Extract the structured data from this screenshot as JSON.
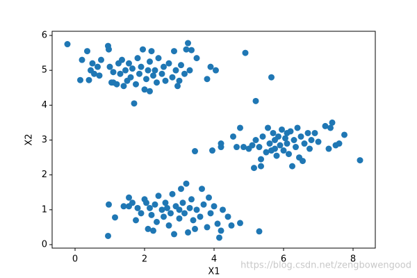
{
  "chart_data": {
    "type": "scatter",
    "xlabel": "X1",
    "ylabel": "X2",
    "color": "#1f77b4",
    "watermark": "https://blog.csdn.net/zengbowengood",
    "xlim": [
      -0.66,
      8.64
    ],
    "ylim": [
      -0.1,
      6.12
    ],
    "xticks": [
      0,
      2,
      4,
      6,
      8
    ],
    "yticks": [
      0,
      1,
      2,
      3,
      4,
      5,
      6
    ],
    "x": [
      -0.22,
      0.15,
      0.2,
      0.35,
      0.4,
      0.45,
      0.5,
      0.55,
      0.65,
      0.7,
      0.75,
      0.95,
      0.97,
      1.0,
      1.05,
      1.1,
      1.2,
      1.25,
      1.3,
      1.35,
      1.4,
      1.45,
      1.5,
      1.55,
      1.6,
      1.65,
      1.7,
      1.75,
      1.8,
      1.85,
      1.9,
      1.95,
      2.0,
      2.05,
      2.1,
      2.15,
      2.2,
      2.25,
      2.3,
      2.35,
      2.4,
      2.5,
      2.55,
      2.6,
      2.7,
      2.8,
      2.85,
      2.9,
      3.0,
      3.05,
      3.15,
      3.2,
      3.25,
      3.3,
      3.35,
      3.5,
      3.8,
      3.9,
      4.05,
      2.95,
      2.15,
      1.1,
      3.45,
      3.95,
      4.2,
      4.2,
      4.55,
      4.65,
      4.75,
      4.85,
      5.0,
      5.1,
      5.15,
      5.2,
      5.3,
      5.35,
      5.35,
      5.4,
      5.5,
      5.55,
      5.6,
      5.65,
      5.7,
      5.75,
      5.8,
      5.85,
      5.9,
      5.95,
      6.0,
      6.05,
      6.1,
      6.15,
      6.2,
      6.25,
      6.3,
      6.35,
      6.4,
      6.45,
      6.5,
      6.55,
      6.6,
      6.7,
      6.75,
      6.8,
      6.9,
      7.0,
      7.2,
      7.3,
      7.35,
      7.4,
      7.5,
      7.6,
      7.75,
      8.2,
      5.75,
      6.1,
      4.9,
      5.65,
      5.2,
      5.3,
      0.97,
      0.95,
      1.15,
      1.4,
      1.55,
      1.55,
      1.65,
      1.75,
      1.8,
      1.9,
      2.0,
      2.05,
      2.1,
      2.15,
      2.2,
      2.25,
      2.3,
      2.35,
      2.4,
      2.5,
      2.55,
      2.6,
      2.7,
      2.75,
      2.8,
      2.85,
      2.9,
      3.0,
      3.05,
      3.1,
      3.15,
      3.2,
      3.25,
      3.3,
      3.35,
      3.4,
      3.45,
      3.5,
      3.6,
      3.65,
      3.7,
      3.8,
      3.85,
      3.9,
      4.0,
      4.1,
      4.15,
      4.2,
      4.25,
      4.4,
      4.5,
      4.75,
      3.0,
      2.65
    ],
    "values": [
      5.75,
      4.72,
      5.3,
      5.55,
      4.72,
      5.0,
      5.2,
      4.9,
      5.1,
      4.85,
      5.3,
      5.7,
      5.6,
      5.1,
      4.65,
      4.95,
      4.6,
      5.2,
      4.9,
      5.3,
      4.55,
      5.0,
      4.7,
      5.2,
      4.8,
      5.05,
      4.05,
      4.6,
      5.35,
      4.9,
      5.1,
      5.6,
      4.45,
      4.75,
      5.0,
      5.25,
      5.55,
      4.85,
      5.0,
      4.65,
      5.35,
      4.9,
      5.1,
      4.7,
      5.2,
      4.8,
      5.55,
      5.0,
      4.7,
      5.15,
      4.9,
      5.6,
      5.78,
      5.0,
      5.58,
      5.35,
      4.75,
      5.1,
      5.0,
      4.55,
      4.4,
      4.65,
      2.68,
      2.7,
      2.8,
      2.9,
      3.1,
      2.8,
      3.35,
      2.8,
      2.75,
      2.85,
      2.2,
      3.0,
      2.8,
      2.45,
      2.25,
      3.1,
      2.65,
      3.35,
      2.9,
      2.7,
      3.2,
      3.0,
      2.55,
      3.1,
      2.85,
      3.3,
      2.7,
      3.05,
      2.9,
      2.6,
      3.25,
      2.25,
      3.0,
      2.8,
      3.35,
      2.5,
      3.1,
      2.4,
      2.9,
      3.2,
      2.75,
      3.0,
      3.2,
      2.95,
      3.4,
      2.75,
      3.35,
      3.5,
      2.85,
      2.9,
      3.15,
      2.42,
      2.75,
      3.2,
      5.5,
      4.8,
      4.12,
      0.38,
      1.15,
      0.25,
      0.78,
      1.1,
      1.1,
      1.35,
      1.2,
      0.7,
      1.05,
      0.9,
      1.3,
      1.2,
      0.45,
      1.05,
      0.85,
      0.4,
      1.15,
      0.65,
      1.4,
      1.0,
      0.8,
      1.2,
      0.55,
      0.9,
      1.45,
      0.3,
      1.1,
      0.75,
      1.6,
      1.2,
      0.9,
      1.75,
      0.35,
      1.05,
      1.3,
      0.7,
      0.45,
      1.0,
      0.8,
      1.6,
      1.15,
      0.5,
      1.35,
      0.9,
      1.1,
      0.6,
      0.2,
      0.4,
      1.0,
      0.8,
      0.55,
      0.62,
      1.0,
      1.05
    ]
  }
}
